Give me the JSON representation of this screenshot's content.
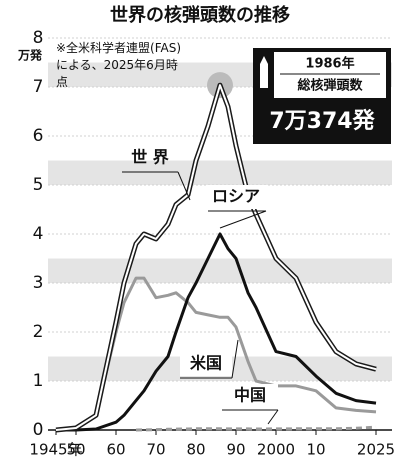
{
  "chart_data": {
    "type": "line",
    "title": "世界の核弾頭数の推移",
    "note": "※全米科学者連盟(FAS)による、2025年6月時点",
    "y_unit": "万発",
    "annotation": {
      "year": "1986年",
      "label": "総核弾頭数",
      "value_label": "7万374発",
      "value": 7.0374
    },
    "x": [
      1945,
      1950,
      1955,
      1960,
      1962,
      1965,
      1967,
      1970,
      1973,
      1975,
      1978,
      1980,
      1983,
      1986,
      1988,
      1990,
      1993,
      1995,
      2000,
      2005,
      2010,
      2015,
      2020,
      2025
    ],
    "series": [
      {
        "name": "世 界",
        "color": "#ffffff",
        "outline": "#1a1a1a",
        "values": [
          0,
          0.04,
          0.3,
          2.2,
          3.0,
          3.8,
          4.0,
          3.9,
          4.2,
          4.6,
          4.8,
          5.5,
          6.2,
          7.0374,
          6.6,
          5.8,
          4.8,
          4.4,
          3.5,
          3.1,
          2.2,
          1.6,
          1.35,
          1.24
        ]
      },
      {
        "name": "ロシア",
        "color": "#111111",
        "values": [
          0,
          0.0005,
          0.02,
          0.16,
          0.3,
          0.6,
          0.8,
          1.2,
          1.5,
          2.0,
          2.7,
          3.0,
          3.5,
          4.0,
          3.7,
          3.5,
          2.8,
          2.5,
          1.6,
          1.5,
          1.1,
          0.75,
          0.6,
          0.55
        ]
      },
      {
        "name": "米国",
        "color": "#9a9a9a",
        "values": [
          0,
          0.03,
          0.3,
          2.0,
          2.6,
          3.1,
          3.1,
          2.7,
          2.75,
          2.8,
          2.6,
          2.4,
          2.35,
          2.3,
          2.3,
          2.1,
          1.4,
          1.0,
          0.9,
          0.9,
          0.8,
          0.45,
          0.4,
          0.37
        ]
      },
      {
        "name": "中国",
        "color": "#9a9a9a",
        "dashed": true,
        "values": [
          null,
          null,
          null,
          null,
          null,
          0.0005,
          0.0025,
          0.0075,
          0.015,
          0.018,
          0.02,
          0.025,
          0.025,
          0.025,
          0.023,
          0.023,
          0.023,
          0.02,
          0.023,
          0.024,
          0.024,
          0.026,
          0.035,
          0.06
        ]
      }
    ],
    "xlim": [
      1943,
      2029
    ],
    "xticks": [
      {
        "value": 1945,
        "label": "1945年"
      },
      {
        "value": 1950,
        "label": "50"
      },
      {
        "value": 1960,
        "label": "60"
      },
      {
        "value": 1970,
        "label": "70"
      },
      {
        "value": 1980,
        "label": "80"
      },
      {
        "value": 1990,
        "label": "90"
      },
      2000,
      {
        "value": 2010,
        "label": "10"
      },
      2025
    ],
    "ylim": [
      0,
      8
    ],
    "yticks": [
      0,
      1,
      2,
      3,
      4,
      5,
      6,
      7,
      8
    ],
    "grid": true
  }
}
